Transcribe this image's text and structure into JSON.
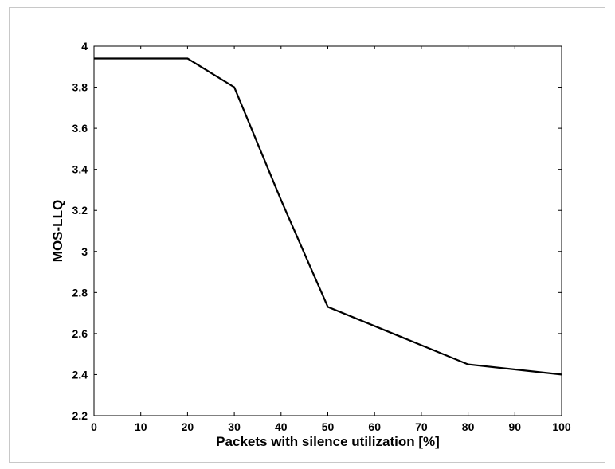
{
  "chart_data": {
    "type": "line",
    "xlabel": "Packets with silence utilization [%]",
    "ylabel": "MOS-LLQ",
    "xlim": [
      0,
      100
    ],
    "ylim": [
      2.2,
      4
    ],
    "xticks": [
      0,
      10,
      20,
      30,
      40,
      50,
      60,
      70,
      80,
      90,
      100
    ],
    "yticks": [
      2.2,
      2.4,
      2.6,
      2.8,
      3,
      3.2,
      3.4,
      3.6,
      3.8,
      4
    ],
    "ytick_labels": [
      "2.2",
      "2.4",
      "2.6",
      "2.8",
      "3",
      "3.2",
      "3.4",
      "3.6",
      "3.8",
      "4"
    ],
    "grid": false,
    "series": [
      {
        "color": "#000000",
        "x": [
          0,
          20,
          30,
          40,
          50,
          80,
          100
        ],
        "y": [
          3.94,
          3.94,
          3.8,
          3.25,
          2.73,
          2.45,
          2.4
        ]
      }
    ]
  }
}
